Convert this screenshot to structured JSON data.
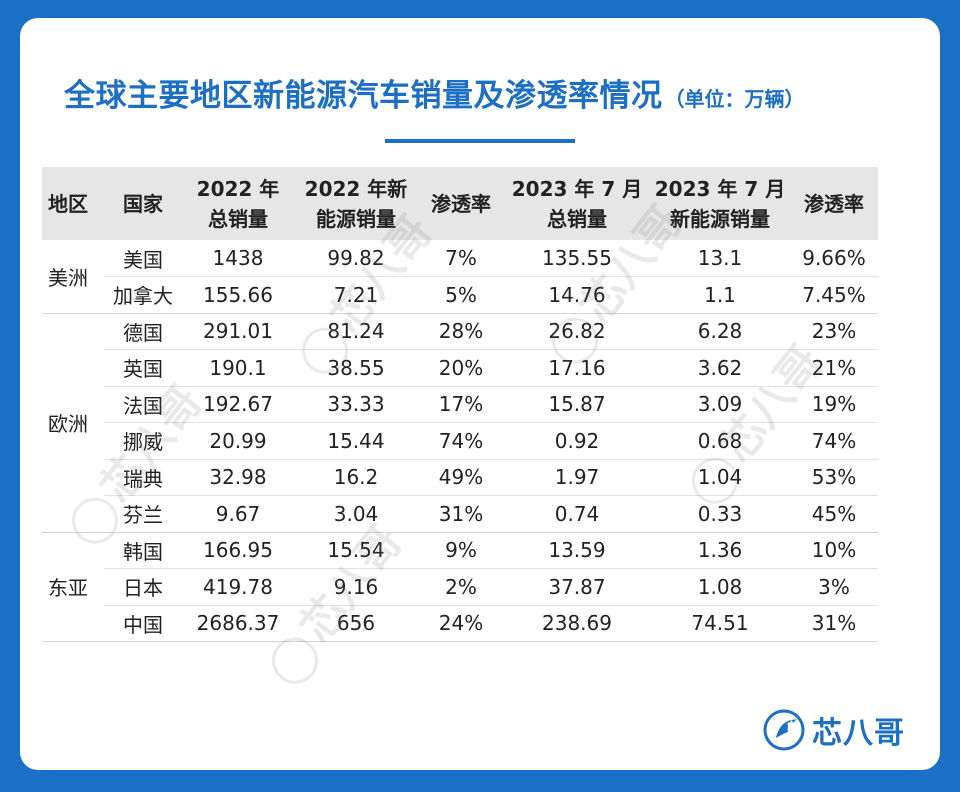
{
  "title": "全球主要地区新能源汽车销量及渗透率情况",
  "unit": "（单位：万辆）",
  "brand": "芯八哥",
  "watermark_text": "芯八哥",
  "colors": {
    "accent": "#1d6fc2",
    "frame": "#1b6fc4",
    "header_bg": "#e6e6e6"
  },
  "chart_data": {
    "type": "table",
    "title": "全球主要地区新能源汽车销量及渗透率情况",
    "unit": "（单位：万辆）",
    "columns": [
      {
        "line1": "地区",
        "line2": ""
      },
      {
        "line1": "国家",
        "line2": ""
      },
      {
        "line1": "2022 年",
        "line2": "总销量"
      },
      {
        "line1": "2022 年新",
        "line2": "能源销量"
      },
      {
        "line1": "渗透率",
        "line2": ""
      },
      {
        "line1": "2023 年 7 月",
        "line2": "总销量"
      },
      {
        "line1": "2023 年 7 月",
        "line2": "新能源销量"
      },
      {
        "line1": "渗透率",
        "line2": ""
      }
    ],
    "regions": [
      {
        "name": "美洲",
        "rows": [
          {
            "country": "美国",
            "total_2022": "1438",
            "nev_2022": "99.82",
            "rate_2022": "7%",
            "total_2023_07": "135.55",
            "nev_2023_07": "13.1",
            "rate_2023_07": "9.66%"
          },
          {
            "country": "加拿大",
            "total_2022": "155.66",
            "nev_2022": "7.21",
            "rate_2022": "5%",
            "total_2023_07": "14.76",
            "nev_2023_07": "1.1",
            "rate_2023_07": "7.45%"
          }
        ]
      },
      {
        "name": "欧洲",
        "rows": [
          {
            "country": "德国",
            "total_2022": "291.01",
            "nev_2022": "81.24",
            "rate_2022": "28%",
            "total_2023_07": "26.82",
            "nev_2023_07": "6.28",
            "rate_2023_07": "23%"
          },
          {
            "country": "英国",
            "total_2022": "190.1",
            "nev_2022": "38.55",
            "rate_2022": "20%",
            "total_2023_07": "17.16",
            "nev_2023_07": "3.62",
            "rate_2023_07": "21%"
          },
          {
            "country": "法国",
            "total_2022": "192.67",
            "nev_2022": "33.33",
            "rate_2022": "17%",
            "total_2023_07": "15.87",
            "nev_2023_07": "3.09",
            "rate_2023_07": "19%"
          },
          {
            "country": "挪威",
            "total_2022": "20.99",
            "nev_2022": "15.44",
            "rate_2022": "74%",
            "total_2023_07": "0.92",
            "nev_2023_07": "0.68",
            "rate_2023_07": "74%"
          },
          {
            "country": "瑞典",
            "total_2022": "32.98",
            "nev_2022": "16.2",
            "rate_2022": "49%",
            "total_2023_07": "1.97",
            "nev_2023_07": "1.04",
            "rate_2023_07": "53%"
          },
          {
            "country": "芬兰",
            "total_2022": "9.67",
            "nev_2022": "3.04",
            "rate_2022": "31%",
            "total_2023_07": "0.74",
            "nev_2023_07": "0.33",
            "rate_2023_07": "45%"
          }
        ]
      },
      {
        "name": "东亚",
        "rows": [
          {
            "country": "韩国",
            "total_2022": "166.95",
            "nev_2022": "15.54",
            "rate_2022": "9%",
            "total_2023_07": "13.59",
            "nev_2023_07": "1.36",
            "rate_2023_07": "10%"
          },
          {
            "country": "日本",
            "total_2022": "419.78",
            "nev_2022": "9.16",
            "rate_2022": "2%",
            "total_2023_07": "37.87",
            "nev_2023_07": "1.08",
            "rate_2023_07": "3%"
          },
          {
            "country": "中国",
            "total_2022": "2686.37",
            "nev_2022": "656",
            "rate_2022": "24%",
            "total_2023_07": "238.69",
            "nev_2023_07": "74.51",
            "rate_2023_07": "31%"
          }
        ]
      }
    ]
  }
}
